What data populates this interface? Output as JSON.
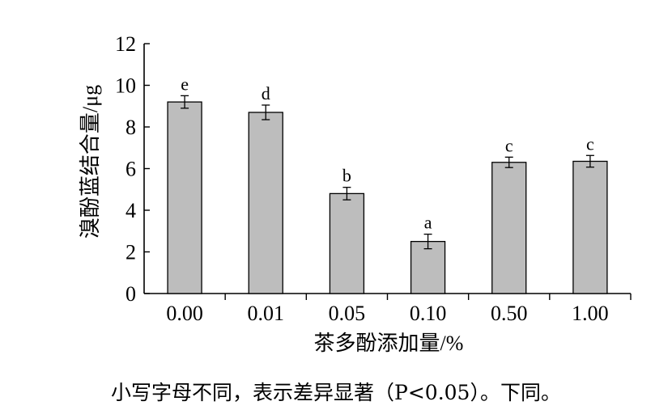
{
  "chart_data": {
    "type": "bar",
    "categories": [
      "0.00",
      "0.01",
      "0.05",
      "0.10",
      "0.50",
      "1.00"
    ],
    "values": [
      9.2,
      8.7,
      4.8,
      2.5,
      6.3,
      6.35
    ],
    "errors": [
      0.3,
      0.35,
      0.3,
      0.35,
      0.25,
      0.28
    ],
    "significance_letters": [
      "e",
      "d",
      "b",
      "a",
      "c",
      "c"
    ],
    "xlabel": "茶多酚添加量/%",
    "ylabel": "溴酚蓝结合量/μg",
    "ylim": [
      0,
      12
    ],
    "yticks": [
      "0",
      "2",
      "4",
      "6",
      "8",
      "10",
      "12"
    ],
    "bar_color": "#bdbdbd",
    "grid": false,
    "legend": "none"
  },
  "caption": "小写字母不同，表示差异显著（P<0.05）。下同。"
}
